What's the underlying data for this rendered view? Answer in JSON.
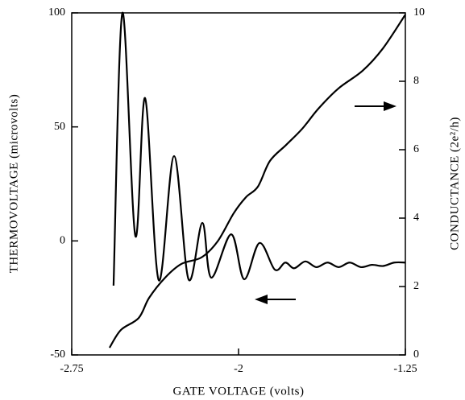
{
  "chart_data": {
    "type": "line",
    "xlabel": "GATE VOLTAGE (volts)",
    "ylabel": "THERMOVOLTAGE (microvolts)",
    "y2label": "CONDUCTANCE (2e²/h)",
    "xlim": [
      -2.75,
      -1.25
    ],
    "xticks": [
      -2.75,
      -2,
      -1.25
    ],
    "ylim": [
      -50,
      100
    ],
    "yticks": [
      -50,
      0,
      50,
      100
    ],
    "y2lim": [
      0,
      10
    ],
    "y2ticks": [
      0,
      2,
      4,
      6,
      8,
      10
    ],
    "series": [
      {
        "color": "#000000",
        "x": [
          -2.562,
          -2.522,
          -2.464,
          -2.42,
          -2.359,
          -2.29,
          -2.225,
          -2.163,
          -2.123,
          -2.033,
          -1.975,
          -1.906,
          -1.837,
          -1.79,
          -1.75,
          -1.7,
          -1.65,
          -1.6,
          -1.55,
          -1.5,
          -1.45,
          -1.4,
          -1.35,
          -1.3,
          -1.25
        ],
        "values": [
          -19.6,
          100,
          2.2,
          62.6,
          -17.2,
          37.2,
          -16.8,
          7.9,
          -16.1,
          2.9,
          -16.8,
          -0.9,
          -12.6,
          -9.5,
          -12,
          -9,
          -11.5,
          -9.5,
          -11.5,
          -9.5,
          -11.5,
          -10.5,
          -11,
          -9.5,
          -9.5
        ]
      },
      {
        "color": "#000000",
        "axis": "y2",
        "x": [
          -2.58,
          -2.529,
          -2.449,
          -2.402,
          -2.33,
          -2.257,
          -2.167,
          -2.094,
          -2.022,
          -1.967,
          -1.913,
          -1.859,
          -1.786,
          -1.714,
          -1.641,
          -1.551,
          -1.442,
          -1.351,
          -1.25
        ],
        "values": [
          0.21,
          0.73,
          1.08,
          1.67,
          2.26,
          2.66,
          2.85,
          3.32,
          4.14,
          4.61,
          4.92,
          5.67,
          6.14,
          6.61,
          7.2,
          7.79,
          8.31,
          8.96,
          9.95
        ]
      }
    ]
  }
}
